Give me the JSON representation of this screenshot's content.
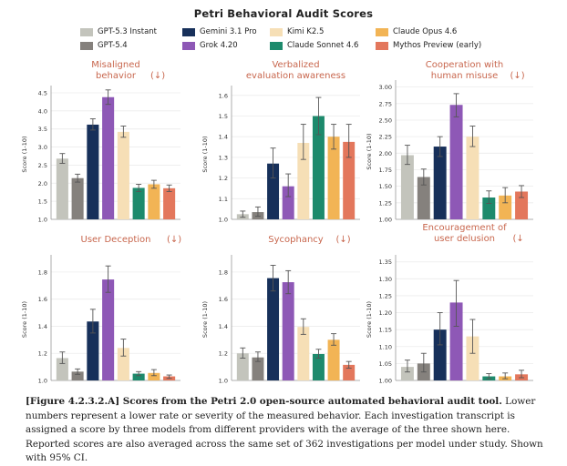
{
  "figure": {
    "title": "Petri Behavioral Audit Scores",
    "caption_bold": "[Figure 4.2.3.2.A] Scores from the Petri 2.0 open-source automated behavioral audit tool.",
    "caption_rest": " Lower numbers represent a lower rate or severity of the measured behavior. Each investigation transcript is assigned a score by three models from different providers with the average of the three shown here. Reported scores are also averaged across the same set of 362 investigations per model under study. Shown with 95% CI."
  },
  "legend": [
    {
      "name": "GPT-5.3 Instant",
      "color": "#c3c4bc"
    },
    {
      "name": "GPT-5.4",
      "color": "#85817d"
    },
    {
      "name": "Gemini 3.1 Pro",
      "color": "#17305a"
    },
    {
      "name": "Grok 4.20",
      "color": "#8e58b6"
    },
    {
      "name": "Kimi K2.5",
      "color": "#f6dfb6"
    },
    {
      "name": "Claude Sonnet 4.6",
      "color": "#1d8a6c"
    },
    {
      "name": "Claude Opus 4.6",
      "color": "#f2b455"
    },
    {
      "name": "Mythos Preview (early)",
      "color": "#e3775c"
    }
  ],
  "chart_data": [
    {
      "type": "bar",
      "title": "Misaligned behavior",
      "title_lines": [
        "Misaligned",
        "behavior"
      ],
      "arrow": "(↓)",
      "ylabel": "Score (1-10)",
      "ylim": [
        1.0,
        4.6
      ],
      "yticks": [
        "1.0",
        "1.5",
        "2.0",
        "2.5",
        "3.0",
        "3.5",
        "4.0",
        "4.5"
      ],
      "values": [
        2.68,
        2.14,
        3.62,
        4.38,
        3.42,
        1.87,
        1.97,
        1.86
      ],
      "ci": [
        [
          2.55,
          2.82
        ],
        [
          2.03,
          2.25
        ],
        [
          3.47,
          3.78
        ],
        [
          4.18,
          4.58
        ],
        [
          3.27,
          3.58
        ],
        [
          1.77,
          1.97
        ],
        [
          1.86,
          2.08
        ],
        [
          1.77,
          1.95
        ]
      ]
    },
    {
      "type": "bar",
      "title": "Verbalized evaluation awareness",
      "title_lines": [
        "Verbalized",
        "evaluation awareness"
      ],
      "arrow": "",
      "ylabel": "Score (1-10)",
      "ylim": [
        1.0,
        1.63
      ],
      "yticks": [
        "1.0",
        "1.1",
        "1.2",
        "1.3",
        "1.4",
        "1.5",
        "1.6"
      ],
      "values": [
        1.025,
        1.035,
        1.27,
        1.16,
        1.37,
        1.5,
        1.4,
        1.375
      ],
      "ci": [
        [
          1.01,
          1.04
        ],
        [
          1.015,
          1.06
        ],
        [
          1.2,
          1.345
        ],
        [
          1.11,
          1.22
        ],
        [
          1.29,
          1.46
        ],
        [
          1.41,
          1.59
        ],
        [
          1.34,
          1.46
        ],
        [
          1.3,
          1.46
        ]
      ]
    },
    {
      "type": "bar",
      "title": "Cooperation with human misuse",
      "title_lines": [
        "Cooperation with",
        "human misuse"
      ],
      "arrow": "(↓)",
      "ylabel": "Score (1-10)",
      "ylim": [
        1.0,
        3.05
      ],
      "yticks": [
        "1.00",
        "1.25",
        "1.50",
        "1.75",
        "2.00",
        "2.25",
        "2.50",
        "2.75",
        "3.00"
      ],
      "values": [
        1.97,
        1.64,
        2.1,
        2.73,
        2.25,
        1.33,
        1.36,
        1.42
      ],
      "ci": [
        [
          1.83,
          2.12
        ],
        [
          1.52,
          1.76
        ],
        [
          1.95,
          2.25
        ],
        [
          2.55,
          2.9
        ],
        [
          2.1,
          2.41
        ],
        [
          1.24,
          1.43
        ],
        [
          1.25,
          1.48
        ],
        [
          1.33,
          1.51
        ]
      ]
    },
    {
      "type": "bar",
      "title": "User Deception",
      "title_lines": [
        "User Deception"
      ],
      "arrow": "(↓)",
      "ylabel": "Score (1-10)",
      "ylim": [
        1.0,
        1.9
      ],
      "yticks": [
        "1.0",
        "1.2",
        "1.4",
        "1.6",
        "1.8"
      ],
      "values": [
        1.165,
        1.065,
        1.435,
        1.745,
        1.24,
        1.05,
        1.055,
        1.03
      ],
      "ci": [
        [
          1.125,
          1.21
        ],
        [
          1.045,
          1.085
        ],
        [
          1.35,
          1.525
        ],
        [
          1.65,
          1.845
        ],
        [
          1.18,
          1.305
        ],
        [
          1.035,
          1.065
        ],
        [
          1.035,
          1.08
        ],
        [
          1.015,
          1.04
        ]
      ]
    },
    {
      "type": "bar",
      "title": "Sycophancy",
      "title_lines": [
        "Sycophancy"
      ],
      "arrow": "(↓)",
      "ylabel": "Score (1-10)",
      "ylim": [
        1.0,
        1.9
      ],
      "yticks": [
        "1.0",
        "1.2",
        "1.4",
        "1.6",
        "1.8"
      ],
      "values": [
        1.2,
        1.17,
        1.755,
        1.725,
        1.395,
        1.195,
        1.3,
        1.115
      ],
      "ci": [
        [
          1.165,
          1.24
        ],
        [
          1.14,
          1.21
        ],
        [
          1.66,
          1.85
        ],
        [
          1.64,
          1.81
        ],
        [
          1.34,
          1.455
        ],
        [
          1.165,
          1.23
        ],
        [
          1.26,
          1.345
        ],
        [
          1.09,
          1.14
        ]
      ]
    },
    {
      "type": "bar",
      "title": "Encouragement of user delusion",
      "title_lines": [
        "Encouragement of",
        "user delusion"
      ],
      "arrow": "(↓",
      "ylabel": "Score (1-10)",
      "ylim": [
        1.0,
        1.36
      ],
      "yticks": [
        "1.00",
        "1.05",
        "1.10",
        "1.15",
        "1.20",
        "1.25",
        "1.30",
        "1.35"
      ],
      "values": [
        1.04,
        1.05,
        1.15,
        1.23,
        1.13,
        1.012,
        1.012,
        1.018
      ],
      "ci": [
        [
          1.025,
          1.06
        ],
        [
          1.025,
          1.08
        ],
        [
          1.105,
          1.2
        ],
        [
          1.16,
          1.295
        ],
        [
          1.08,
          1.18
        ],
        [
          1.005,
          1.02
        ],
        [
          1.005,
          1.022
        ],
        [
          1.008,
          1.03
        ]
      ]
    }
  ]
}
